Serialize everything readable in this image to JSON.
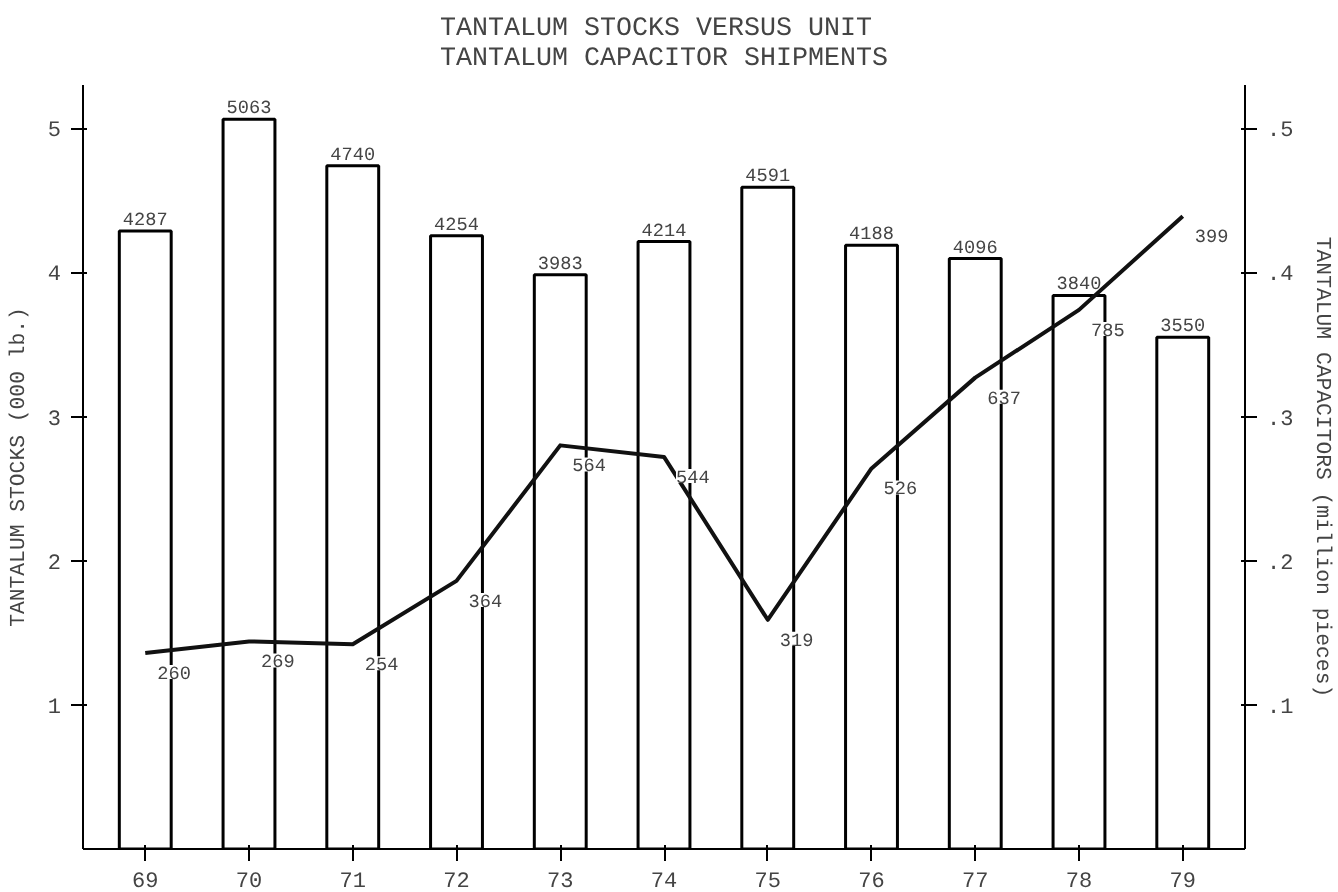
{
  "chart_data": {
    "type": "bar",
    "title": "TANTALUM STOCKS VERSUS UNIT\nTANTALUM CAPACITOR SHIPMENTS",
    "ylabel": "TANTALUM STOCKS (000 lb.)",
    "y2label": "TANTALUM CAPACITORS (million pieces)",
    "categories": [
      "69",
      "70",
      "71",
      "72",
      "73",
      "74",
      "75",
      "76",
      "77",
      "78",
      "79"
    ],
    "series": [
      {
        "color": "#ffffff",
        "values": [
          4.287,
          5.063,
          4.74,
          4.254,
          3.983,
          4.214,
          4.591,
          4.188,
          4.096,
          3.84,
          3.55
        ]
      },
      {
        "type": "line",
        "axis": "y2",
        "color": "#111111",
        "values": [
          0.136,
          0.144,
          0.142,
          0.186,
          0.28,
          0.272,
          0.159,
          0.264,
          0.327,
          0.374,
          0.439
        ]
      }
    ],
    "annotations": [
      {
        "text": "4287",
        "x": "69",
        "y": 4.287
      },
      {
        "text": "5063",
        "x": "70",
        "y": 5.063
      },
      {
        "text": "4740",
        "x": "71",
        "y": 4.74
      },
      {
        "text": "4254",
        "x": "72",
        "y": 4.254
      },
      {
        "text": "3983",
        "x": "73",
        "y": 3.983
      },
      {
        "text": "4214",
        "x": "74",
        "y": 4.214
      },
      {
        "text": "4591",
        "x": "75",
        "y": 4.591
      },
      {
        "text": "4188",
        "x": "76",
        "y": 4.188
      },
      {
        "text": "4096",
        "x": "77",
        "y": 4.096
      },
      {
        "text": "3840",
        "x": "78",
        "y": 3.84
      },
      {
        "text": "3550",
        "x": "79",
        "y": 3.55
      },
      {
        "text": "260",
        "x": "69",
        "y": 1.36
      },
      {
        "text": "269",
        "x": "70",
        "y": 1.44
      },
      {
        "text": "254",
        "x": "71",
        "y": 1.42
      },
      {
        "text": "364",
        "x": "72",
        "y": 1.86
      },
      {
        "text": "564",
        "x": "73",
        "y": 2.8
      },
      {
        "text": "544",
        "x": "74",
        "y": 2.72
      },
      {
        "text": "319",
        "x": "75",
        "y": 1.59
      },
      {
        "text": "526",
        "x": "76",
        "y": 2.64
      },
      {
        "text": "637",
        "x": "77",
        "y": 3.27
      },
      {
        "text": "785",
        "x": "78",
        "y": 3.74
      },
      {
        "text": "399",
        "x": "79",
        "y": 4.39
      }
    ],
    "ylim": [
      0,
      5.3
    ],
    "yticks": [
      1,
      2,
      3,
      4,
      5
    ],
    "y2lim": [
      0,
      0.53
    ],
    "y2ticks": [
      {
        "value": 0.1,
        "label": ".1"
      },
      {
        "value": 0.2,
        "label": ".2"
      },
      {
        "value": 0.3,
        "label": ".3"
      },
      {
        "value": 0.4,
        "label": ".4"
      },
      {
        "value": 0.5,
        "label": ".5"
      }
    ],
    "grid": false,
    "marker": "none",
    "line_style": "solid"
  }
}
